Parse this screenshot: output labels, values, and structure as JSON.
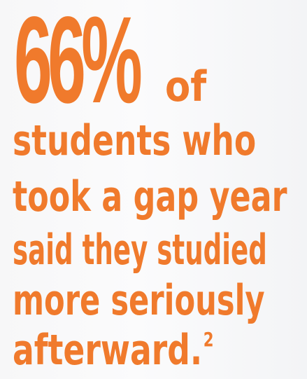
{
  "stat": {
    "percentage": "66%",
    "of_text": "of",
    "caption_lines": [
      "students who",
      "took a gap year",
      "said they studied",
      "more seriously",
      "afterward."
    ],
    "footnote": "2"
  },
  "colors": {
    "accent": "#f07a2c",
    "background": "#f8f8f9"
  }
}
